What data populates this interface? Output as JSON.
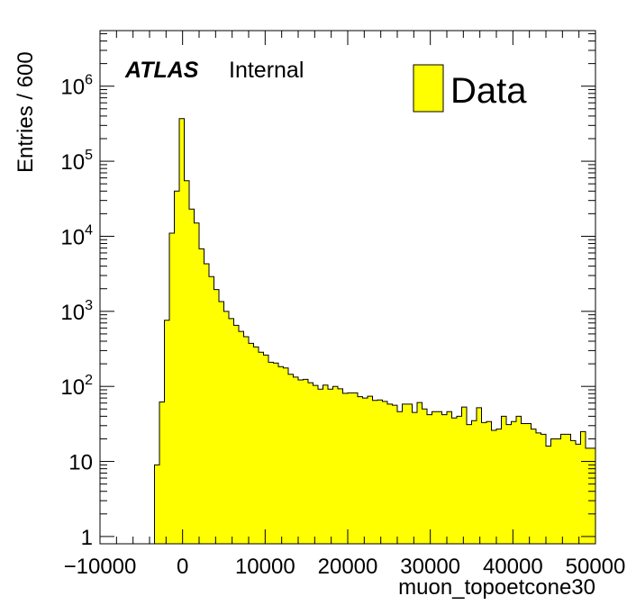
{
  "chart_data": {
    "type": "histogram",
    "title": "",
    "xlabel": "muon_topoetcone30",
    "ylabel": "Entries / 600",
    "x_range": [
      -10000,
      50000
    ],
    "y_scale": "log",
    "y_range": [
      0.8,
      5500000
    ],
    "bin_width": 600,
    "grid": false,
    "x_ticks": [
      {
        "value": -10000,
        "label": "−10000"
      },
      {
        "value": 0,
        "label": "0"
      },
      {
        "value": 10000,
        "label": "10000"
      },
      {
        "value": 20000,
        "label": "20000"
      },
      {
        "value": 30000,
        "label": "30000"
      },
      {
        "value": 40000,
        "label": "40000"
      },
      {
        "value": 50000,
        "label": "50000"
      }
    ],
    "y_ticks": [
      {
        "value": 1,
        "base": "1",
        "exp": ""
      },
      {
        "value": 10,
        "base": "10",
        "exp": ""
      },
      {
        "value": 100,
        "base": "10",
        "exp": "2"
      },
      {
        "value": 1000,
        "base": "10",
        "exp": "3"
      },
      {
        "value": 10000,
        "base": "10",
        "exp": "4"
      },
      {
        "value": 100000,
        "base": "10",
        "exp": "5"
      },
      {
        "value": 1000000,
        "base": "10",
        "exp": "6"
      }
    ],
    "bins_start": -10000,
    "bin_contents": [
      0,
      0,
      0,
      0,
      0,
      0,
      0,
      0,
      0,
      0,
      0,
      9,
      62,
      760,
      11000,
      40000,
      370000,
      55000,
      23000,
      15000,
      6800,
      4300,
      2900,
      1950,
      1350,
      1000,
      800,
      650,
      540,
      460,
      375,
      335,
      285,
      262,
      210,
      205,
      183,
      176,
      145,
      133,
      122,
      124,
      112,
      103,
      92,
      104,
      92,
      100,
      93,
      81,
      82,
      82,
      73,
      70,
      74,
      65,
      66,
      63,
      58,
      56,
      46,
      58,
      58,
      45,
      61,
      50,
      42,
      46,
      46,
      42,
      46,
      38,
      40,
      53,
      31,
      35,
      52,
      33,
      34,
      26,
      27,
      40,
      31,
      34,
      40,
      32,
      32,
      27,
      24,
      23,
      16,
      20,
      20,
      23,
      23,
      19,
      17,
      25,
      15,
      15
    ],
    "series": [
      {
        "name": "Data",
        "color": "#ffff00",
        "edge_color": "#000000"
      }
    ],
    "legend": {
      "placement": "top-right",
      "entries": [
        "Data"
      ]
    },
    "annotation": {
      "bold_italic": "ATLAS",
      "normal": "Internal",
      "placement": "top-left"
    }
  }
}
